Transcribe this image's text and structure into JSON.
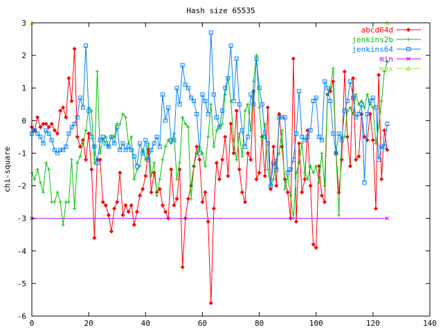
{
  "chart_data": {
    "type": "line",
    "title": "Hash size 65535",
    "xlabel": "",
    "ylabel": "chi-square",
    "xlim": [
      0,
      140
    ],
    "ylim": [
      -6,
      3
    ],
    "xticks": [
      "0",
      "20",
      "40",
      "60",
      "80",
      "100",
      "120",
      "140"
    ],
    "yticks": [
      "3",
      "2",
      "1",
      "0",
      "-1",
      "-2",
      "-3",
      "-4",
      "-5",
      "-6"
    ],
    "legend_position": "top-right",
    "grid": false,
    "series": [
      {
        "name": "abcd64d",
        "color": "#ff0000",
        "marker": "diamond",
        "x": [
          0,
          1,
          2,
          3,
          4,
          5,
          6,
          7,
          8,
          9,
          10,
          11,
          12,
          13,
          14,
          15,
          16,
          17,
          18,
          19,
          20,
          21,
          22,
          23,
          24,
          25,
          26,
          27,
          28,
          29,
          30,
          31,
          32,
          33,
          34,
          35,
          36,
          37,
          38,
          39,
          40,
          41,
          42,
          43,
          44,
          45,
          46,
          47,
          48,
          49,
          50,
          51,
          52,
          53,
          54,
          55,
          56,
          57,
          58,
          59,
          60,
          61,
          62,
          63,
          64,
          65,
          66,
          67,
          68,
          69,
          70,
          71,
          72,
          73,
          74,
          75,
          76,
          77,
          78,
          79,
          80,
          81,
          82,
          83,
          84,
          85,
          86,
          87,
          88,
          89,
          90,
          91,
          92,
          93,
          94,
          95,
          96,
          97,
          98,
          99,
          100,
          101,
          102,
          103,
          104,
          105,
          106,
          107,
          108,
          109,
          110,
          111,
          112,
          113,
          114,
          115,
          116,
          117,
          118,
          119,
          120,
          121,
          122,
          123,
          124,
          125
        ],
        "values": [
          -0.2,
          -0.3,
          0.1,
          -0.2,
          -0.1,
          -0.1,
          -0.2,
          -0.1,
          -0.3,
          -0.4,
          0.3,
          0.4,
          0.1,
          1.3,
          0.6,
          2.2,
          -0.5,
          -0.8,
          -0.6,
          -1.2,
          -0.4,
          -1.5,
          -3.6,
          -1.2,
          -1.2,
          -2.5,
          -2.6,
          -2.9,
          -3.4,
          -2.7,
          -2.5,
          -1.6,
          -2.9,
          -2.6,
          -2.8,
          -2.6,
          -3.2,
          -2.8,
          -2.3,
          -2.1,
          -1.7,
          -0.9,
          -2.2,
          -1.6,
          -2.2,
          -2.1,
          -2.6,
          -2.8,
          -3.0,
          -1.5,
          -2.6,
          -2.4,
          -1.5,
          -4.5,
          -3.0,
          -2.4,
          -2.0,
          -1.4,
          -0.8,
          -1.2,
          -2.5,
          -2.2,
          -3.1,
          -5.6,
          -2.7,
          -1.3,
          -1.8,
          -1.2,
          -0.5,
          -1.7,
          -0.1,
          -1.0,
          0.3,
          -1.5,
          -2.2,
          -2.5,
          -1.0,
          -1.2,
          0.9,
          -1.8,
          -1.6,
          -0.5,
          -1.7,
          0.4,
          -2.1,
          -0.8,
          -2.0,
          0.2,
          -0.8,
          -1.8,
          -2.2,
          -3.0,
          1.9,
          -3.1,
          -0.7,
          -2.2,
          -1.8,
          -0.3,
          -2.0,
          -3.8,
          -3.9,
          -1.4,
          -2.3,
          -2.5,
          0.8,
          0.9,
          1.2,
          -1.0,
          -2.2,
          -1.2,
          1.5,
          -0.5,
          -1.4,
          1.3,
          -1.2,
          -1.1,
          0.2,
          -0.5,
          -0.6,
          0.2,
          -0.6,
          -2.7,
          1.4,
          -1.8,
          -0.3,
          -0.9
        ]
      },
      {
        "name": "jenkins2b",
        "color": "#00c000",
        "marker": "plus",
        "x": [
          0,
          1,
          2,
          3,
          4,
          5,
          6,
          7,
          8,
          9,
          10,
          11,
          12,
          13,
          14,
          15,
          16,
          17,
          18,
          19,
          20,
          21,
          22,
          23,
          24,
          25,
          26,
          27,
          28,
          29,
          30,
          31,
          32,
          33,
          34,
          35,
          36,
          37,
          38,
          39,
          40,
          41,
          42,
          43,
          44,
          45,
          46,
          47,
          48,
          49,
          50,
          51,
          52,
          53,
          54,
          55,
          56,
          57,
          58,
          59,
          60,
          61,
          62,
          63,
          64,
          65,
          66,
          67,
          68,
          69,
          70,
          71,
          72,
          73,
          74,
          75,
          76,
          77,
          78,
          79,
          80,
          81,
          82,
          83,
          84,
          85,
          86,
          87,
          88,
          89,
          90,
          91,
          92,
          93,
          94,
          95,
          96,
          97,
          98,
          99,
          100,
          101,
          102,
          103,
          104,
          105,
          106,
          107,
          108,
          109,
          110,
          111,
          112,
          113,
          114,
          115,
          116,
          117,
          118,
          119,
          120,
          121,
          122,
          123,
          124,
          125
        ],
        "values": [
          -1.6,
          -1.8,
          -1.5,
          -1.9,
          -2.2,
          -1.3,
          -1.5,
          -2.5,
          -2.5,
          -2.2,
          -2.5,
          -3.2,
          -2.5,
          -2.5,
          -1.2,
          -2.7,
          -1.3,
          -1.1,
          -0.7,
          -0.3,
          0.4,
          0.3,
          -1.3,
          1.5,
          -1.0,
          -0.6,
          -0.5,
          -0.8,
          -0.5,
          -0.5,
          -0.1,
          -0.1,
          0.2,
          0.1,
          -0.7,
          -0.5,
          -1.8,
          -1.5,
          -1.4,
          -0.9,
          -1.2,
          -0.7,
          -1.7,
          -1.3,
          -2.3,
          -1.8,
          -1.2,
          -0.8,
          -0.6,
          -0.7,
          -0.4,
          -1.8,
          -1.3,
          0.1,
          -0.1,
          -0.2,
          -2.4,
          -1.4,
          -1.0,
          -0.8,
          -1.0,
          -1.4,
          -0.5,
          0.5,
          -0.8,
          -0.3,
          -0.2,
          -0.1,
          0.8,
          1.3,
          0.6,
          -0.6,
          -1.2,
          -0.4,
          -1.1,
          0.3,
          0.5,
          -0.3,
          1.2,
          2.0,
          0.4,
          -0.6,
          -0.1,
          -1.5,
          -2.0,
          -1.8,
          -1.2,
          -1.0,
          -0.3,
          -2.1,
          -1.7,
          -2.3,
          -3.0,
          -1.6,
          -1.3,
          -0.7,
          -1.6,
          -1.8,
          -1.4,
          -1.6,
          -1.4,
          -1.9,
          -1.0,
          -2.0,
          0.8,
          1.0,
          1.6,
          -1.0,
          -2.9,
          -0.5,
          -0.5,
          0.3,
          0.4,
          0.2,
          0.8,
          0.5,
          0.6,
          0.4,
          0.8,
          0.5,
          0.4,
          -0.7,
          -0.2,
          0.6,
          1.5,
          1.8
        ]
      },
      {
        "name": "jenkins64",
        "color": "#0080ff",
        "marker": "square",
        "x": [
          0,
          1,
          2,
          3,
          4,
          5,
          6,
          7,
          8,
          9,
          10,
          11,
          12,
          13,
          14,
          15,
          16,
          17,
          18,
          19,
          20,
          21,
          22,
          23,
          24,
          25,
          26,
          27,
          28,
          29,
          30,
          31,
          32,
          33,
          34,
          35,
          36,
          37,
          38,
          39,
          40,
          41,
          42,
          43,
          44,
          45,
          46,
          47,
          48,
          49,
          50,
          51,
          52,
          53,
          54,
          55,
          56,
          57,
          58,
          59,
          60,
          61,
          62,
          63,
          64,
          65,
          66,
          67,
          68,
          69,
          70,
          71,
          72,
          73,
          74,
          75,
          76,
          77,
          78,
          79,
          80,
          81,
          82,
          83,
          84,
          85,
          86,
          87,
          88,
          89,
          90,
          91,
          92,
          93,
          94,
          95,
          96,
          97,
          98,
          99,
          100,
          101,
          102,
          103,
          104,
          105,
          106,
          107,
          108,
          109,
          110,
          111,
          112,
          113,
          114,
          115,
          116,
          117,
          118,
          119,
          120,
          121,
          122,
          123,
          124,
          125
        ],
        "values": [
          -0.4,
          -0.3,
          -0.4,
          -0.5,
          -0.7,
          -0.3,
          -0.4,
          -0.6,
          -0.9,
          -1.0,
          -0.9,
          -0.9,
          -0.8,
          -0.4,
          -0.2,
          -0.1,
          0.1,
          0.7,
          0.4,
          2.3,
          0.3,
          -0.5,
          -0.8,
          -1.3,
          -0.6,
          -0.5,
          -0.7,
          -0.8,
          -0.5,
          -0.7,
          -0.2,
          -0.9,
          -0.7,
          -0.9,
          -0.8,
          -0.9,
          -1.1,
          -1.4,
          -0.7,
          -1.0,
          -0.6,
          -1.2,
          -0.9,
          -0.7,
          -0.5,
          -0.8,
          0.8,
          0.0,
          0.4,
          -0.6,
          -0.6,
          1.0,
          0.5,
          1.7,
          1.1,
          1.0,
          0.7,
          0.6,
          0.2,
          -1.0,
          0.8,
          0.6,
          0.2,
          2.7,
          0.8,
          0.1,
          -0.2,
          0.3,
          1.0,
          1.3,
          2.3,
          0.6,
          1.9,
          0.5,
          -0.3,
          -0.8,
          -0.5,
          0.8,
          0.5,
          1.9,
          1.0,
          0.5,
          -0.5,
          -0.7,
          -2.0,
          -1.3,
          -1.5,
          0.1,
          0.1,
          0.1,
          -1.6,
          -1.5,
          -1.2,
          -0.4,
          0.9,
          -0.5,
          -0.6,
          -0.5,
          -0.3,
          0.6,
          0.7,
          -0.5,
          -0.6,
          1.2,
          1.0,
          0.6,
          -0.4,
          -1.0,
          -0.4,
          -0.6,
          0.3,
          0.6,
          1.2,
          0.7,
          0.1,
          0.2,
          0.5,
          -1.9,
          0.2,
          0.6,
          0.7,
          0.4,
          -1.2,
          -0.8,
          -0.8,
          -0.1
        ]
      },
      {
        "name": "min",
        "color": "#c000ff",
        "marker": "cross",
        "x": [
          0,
          125
        ],
        "values": [
          -3,
          -3
        ]
      },
      {
        "name": "max",
        "color": "#a0e040",
        "marker": "triangle",
        "x": [
          0,
          125
        ],
        "values": [
          3,
          3
        ]
      }
    ]
  }
}
